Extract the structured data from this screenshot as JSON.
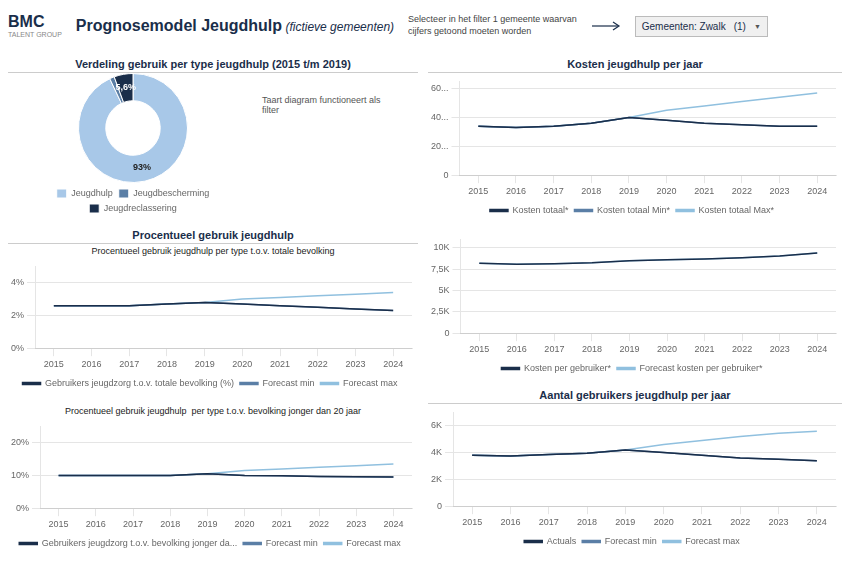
{
  "chart_data": [
    {
      "type": "doughnut",
      "title": "Verdeling gebruik per type jeugdhulp (2015 t/m 2019)",
      "categories": [
        "Jeugdhulp",
        "Jeugdbescherming",
        "Jeugdreclassering"
      ],
      "values": [
        93.0,
        1.4,
        5.6
      ],
      "value_labels": [
        "93%",
        null,
        "5,6%"
      ],
      "data_labels": true,
      "colors": [
        "#a8c8e8",
        "#5b7fa6",
        "#1a2e4a"
      ],
      "legend": "bottom",
      "annotations": [
        "BMC",
        "TALENT GROUP",
        "Prognosemodel Jeugdhulp",
        " (fictieve gemeenten)",
        "Selecteer in het filter 1 gemeente waarvan\ncijfers getoond moeten worden",
        "Gemeenten: Zwalk",
        "(1)",
        "▼",
        "Taart diagram functioneert als\nfilter"
      ]
    },
    {
      "type": "line",
      "title": "Procentueel gebruik jeugdhulp",
      "subtitle": "Procentueel gebruik jeugdhulp per type t.o.v. totale bevolking",
      "x": [
        2015,
        2016,
        2017,
        2018,
        2019,
        2020,
        2021,
        2022,
        2023,
        2024
      ],
      "xlim": [
        2014.5,
        2024.5
      ],
      "xticks": [
        2015,
        2016,
        2017,
        2018,
        2019,
        2020,
        2021,
        2022,
        2023,
        2024
      ],
      "ylim": [
        0,
        0.05
      ],
      "yticks": [
        {
          "value": 0,
          "label": "0%"
        },
        {
          "value": 0.02,
          "label": "2%"
        },
        {
          "value": 0.04,
          "label": "4%"
        }
      ],
      "grid": "y",
      "legend": "bottom",
      "series": [
        {
          "name": "Gebruikers jeugdzorg t.o.v. totale bevolking (%)",
          "color": "#1a2e4a",
          "values": [
            0.026,
            0.026,
            0.026,
            0.027,
            0.028,
            0.027,
            0.026,
            0.025,
            0.024,
            0.023
          ]
        },
        {
          "name": "Forecast min",
          "color": "#5b7fa6",
          "values": [
            0.026,
            0.026,
            0.026,
            0.027,
            0.028,
            0.027,
            0.026,
            0.025,
            0.024,
            0.023
          ]
        },
        {
          "name": "Forecast max",
          "color": "#90c0df",
          "values": [
            0.026,
            0.026,
            0.026,
            0.027,
            0.028,
            0.03,
            0.031,
            0.032,
            0.033,
            0.034
          ]
        }
      ]
    },
    {
      "type": "line",
      "subtitle": "Procentueel gebruik jeugdhulp  per type t.o.v. bevolking jonger dan 20 jaar",
      "x": [
        2015,
        2016,
        2017,
        2018,
        2019,
        2020,
        2021,
        2022,
        2023,
        2024
      ],
      "xlim": [
        2014.5,
        2024.5
      ],
      "xticks": [
        2015,
        2016,
        2017,
        2018,
        2019,
        2020,
        2021,
        2022,
        2023,
        2024
      ],
      "ylim": [
        0,
        0.25
      ],
      "yticks": [
        {
          "value": 0,
          "label": "0%"
        },
        {
          "value": 0.1,
          "label": "10%"
        },
        {
          "value": 0.2,
          "label": "20%"
        }
      ],
      "grid": "y",
      "legend": "bottom",
      "series": [
        {
          "name": "Gebruikers jeugdzorg t.o.v. bevolking jonger da...",
          "color": "#1a2e4a",
          "values": [
            0.1,
            0.1,
            0.1,
            0.1,
            0.105,
            0.1,
            0.099,
            0.097,
            0.096,
            0.095
          ]
        },
        {
          "name": "Forecast min",
          "color": "#5b7fa6",
          "values": [
            0.1,
            0.1,
            0.1,
            0.1,
            0.105,
            0.1,
            0.099,
            0.097,
            0.096,
            0.095
          ]
        },
        {
          "name": "Forecast max",
          "color": "#90c0df",
          "values": [
            0.1,
            0.1,
            0.1,
            0.1,
            0.105,
            0.115,
            0.12,
            0.125,
            0.13,
            0.135
          ]
        }
      ]
    },
    {
      "type": "line",
      "title": "Kosten jeugdhulp per jaar",
      "x": [
        2015,
        2016,
        2017,
        2018,
        2019,
        2020,
        2021,
        2022,
        2023,
        2024
      ],
      "xlim": [
        2014.5,
        2024.5
      ],
      "xticks": [
        2015,
        2016,
        2017,
        2018,
        2019,
        2020,
        2021,
        2022,
        2023,
        2024
      ],
      "ylim": [
        0,
        65
      ],
      "yticks": [
        0,
        {
          "value": 20,
          "label": "20..."
        },
        {
          "value": 40,
          "label": "40..."
        },
        {
          "value": 60,
          "label": "60..."
        }
      ],
      "grid": "y",
      "legend": "bottom",
      "series": [
        {
          "name": "Kosten totaal*",
          "color": "#1a2e4a",
          "values": [
            34,
            33,
            34,
            36,
            40,
            38,
            36,
            35,
            34,
            34
          ]
        },
        {
          "name": "Kosten totaal Min*",
          "color": "#5b7fa6",
          "values": [
            34,
            33,
            34,
            36,
            40,
            38,
            36,
            35,
            34,
            34
          ]
        },
        {
          "name": "Kosten totaal Max*",
          "color": "#90c0df",
          "values": [
            34,
            33,
            34,
            36,
            40,
            45,
            48,
            51,
            54,
            57
          ]
        }
      ]
    },
    {
      "type": "line",
      "x": [
        2015,
        2016,
        2017,
        2018,
        2019,
        2020,
        2021,
        2022,
        2023,
        2024
      ],
      "xlim": [
        2014.5,
        2024.5
      ],
      "xticks": [
        2015,
        2016,
        2017,
        2018,
        2019,
        2020,
        2021,
        2022,
        2023,
        2024
      ],
      "ylim": [
        0,
        11000
      ],
      "yticks": [
        0,
        {
          "value": 2500,
          "label": "2,5K"
        },
        {
          "value": 5000,
          "label": "5K"
        },
        {
          "value": 7500,
          "label": "7,5K"
        },
        {
          "value": 10000,
          "label": "10K"
        }
      ],
      "grid": "y",
      "legend": "bottom",
      "series": [
        {
          "name": "Kosten per gebruiker*",
          "color": "#1a2e4a",
          "values": [
            8200,
            8100,
            8150,
            8250,
            8500,
            8600,
            8700,
            8850,
            9050,
            9400
          ]
        },
        {
          "name": "Forecast kosten per gebruiker*",
          "color": "#90c0df",
          "values": [
            8200,
            8100,
            8150,
            8250,
            8500,
            8600,
            8700,
            8850,
            9050,
            9400
          ]
        }
      ]
    },
    {
      "type": "line",
      "title": "Aantal gebruikers jeugdhulp per jaar",
      "x": [
        2015,
        2016,
        2017,
        2018,
        2019,
        2020,
        2021,
        2022,
        2023,
        2024
      ],
      "xlim": [
        2014.5,
        2024.5
      ],
      "xticks": [
        2015,
        2016,
        2017,
        2018,
        2019,
        2020,
        2021,
        2022,
        2023,
        2024
      ],
      "ylim": [
        0,
        7000
      ],
      "yticks": [
        0,
        {
          "value": 2000,
          "label": "2K"
        },
        {
          "value": 4000,
          "label": "4K"
        },
        {
          "value": 6000,
          "label": "6K"
        }
      ],
      "grid": "y",
      "legend": "bottom",
      "series": [
        {
          "name": "Actuals",
          "color": "#1a2e4a",
          "values": [
            3800,
            3750,
            3850,
            3950,
            4200,
            4000,
            3800,
            3600,
            3500,
            3400
          ]
        },
        {
          "name": "Forecast min",
          "color": "#5b7fa6",
          "values": [
            3800,
            3750,
            3850,
            3950,
            4200,
            4000,
            3800,
            3600,
            3500,
            3400
          ]
        },
        {
          "name": "Forecast max",
          "color": "#90c0df",
          "values": [
            3800,
            3750,
            3850,
            3950,
            4200,
            4600,
            4900,
            5200,
            5450,
            5600
          ]
        }
      ]
    }
  ]
}
